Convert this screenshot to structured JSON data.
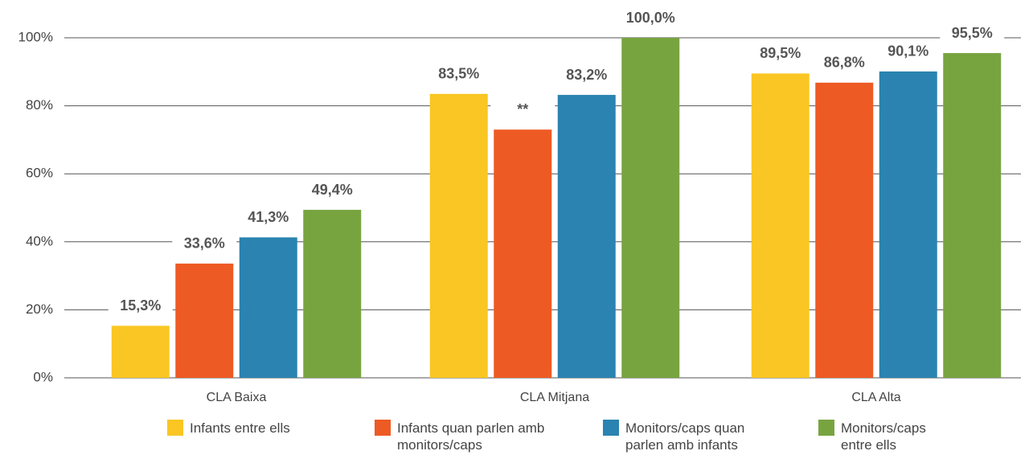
{
  "chart_data": {
    "type": "bar",
    "categories": [
      "CLA Baixa",
      "CLA Mitjana",
      "CLA Alta"
    ],
    "series": [
      {
        "name": "Infants entre ells",
        "color": "#f9c623",
        "values": [
          15.3,
          83.5,
          89.5
        ],
        "value_labels": [
          "15,3%",
          "83,5%",
          "89,5%"
        ]
      },
      {
        "name": "Infants quan parlen amb monitors/caps",
        "color": "#ee5a24",
        "values": [
          33.6,
          73,
          86.8
        ],
        "value_labels": [
          "33,6%",
          "**",
          "86,8%"
        ]
      },
      {
        "name": "Monitors/caps quan parlen amb infants",
        "color": "#2a83b0",
        "values": [
          41.3,
          83.2,
          90.1
        ],
        "value_labels": [
          "41,3%",
          "83,2%",
          "90,1%"
        ]
      },
      {
        "name": "Monitors/caps entre ells",
        "color": "#78a440",
        "values": [
          49.4,
          100,
          95.5
        ],
        "value_labels": [
          "49,4%",
          "100,0%",
          "95,5%"
        ]
      }
    ],
    "ylim": [
      0,
      100
    ],
    "yticks": [
      {
        "value": 0,
        "label": "0%"
      },
      {
        "value": 20,
        "label": "20%"
      },
      {
        "value": 40,
        "label": "40%"
      },
      {
        "value": 60,
        "label": "60%"
      },
      {
        "value": 80,
        "label": "80%"
      },
      {
        "value": 100,
        "label": "100%"
      }
    ],
    "grid": true
  }
}
